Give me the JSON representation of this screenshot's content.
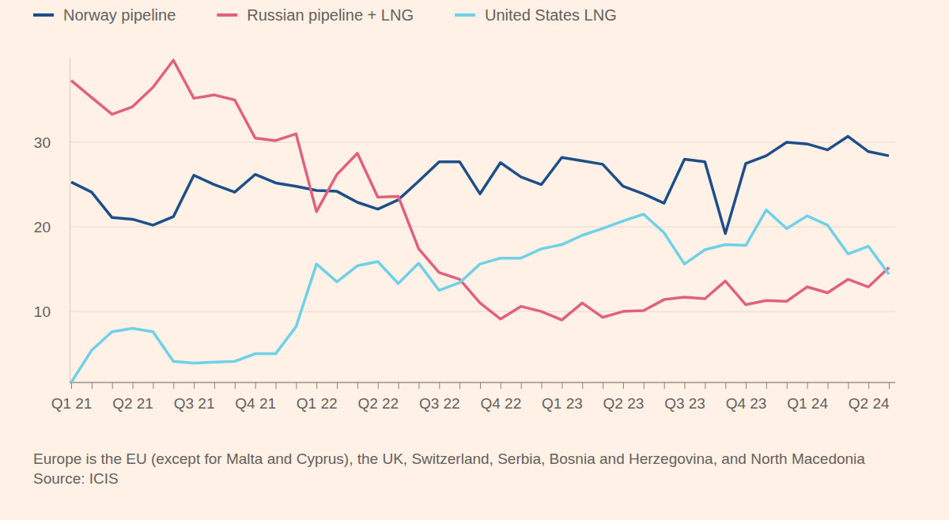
{
  "chart_data": {
    "type": "line",
    "categories": [
      "Q1 21",
      null,
      null,
      "Q2 21",
      null,
      null,
      "Q3 21",
      null,
      null,
      "Q4 21",
      null,
      null,
      "Q1 22",
      null,
      null,
      "Q2 22",
      null,
      null,
      "Q3 22",
      null,
      null,
      "Q4 22",
      null,
      null,
      "Q1 23",
      null,
      null,
      "Q2 23",
      null,
      null,
      "Q3 23",
      null,
      null,
      "Q4 23",
      null,
      null,
      "Q1 24",
      null,
      null,
      "Q2 24",
      null
    ],
    "series": [
      {
        "name": "Norway pipeline",
        "color": "#1d4e89",
        "values": [
          25.3,
          24.1,
          21.1,
          20.9,
          20.2,
          21.2,
          26.1,
          25.0,
          24.1,
          26.2,
          25.2,
          24.8,
          24.3,
          24.2,
          22.9,
          22.1,
          23.2,
          25.4,
          27.7,
          27.7,
          23.9,
          27.6,
          25.9,
          25.0,
          28.2,
          27.8,
          27.4,
          24.8,
          23.9,
          22.8,
          28.0,
          27.7,
          19.2,
          27.5,
          28.4,
          30.0,
          29.8,
          29.1,
          30.7,
          28.9,
          28.4
        ]
      },
      {
        "name": "Russian pipeline + LNG",
        "color": "#e0607e",
        "values": [
          37.3,
          35.3,
          33.3,
          34.2,
          36.5,
          39.7,
          35.2,
          35.6,
          35.0,
          30.5,
          30.2,
          31.0,
          21.8,
          26.2,
          28.7,
          23.5,
          23.6,
          17.4,
          14.6,
          13.8,
          11.0,
          9.1,
          10.6,
          10.0,
          9.0,
          11.0,
          9.3,
          10.0,
          10.1,
          11.4,
          11.7,
          11.5,
          13.6,
          10.8,
          11.3,
          11.2,
          12.9,
          12.2,
          13.8,
          12.9,
          15.2
        ]
      },
      {
        "name": "United States LNG",
        "color": "#6fd0e8",
        "values": [
          1.6,
          5.4,
          7.6,
          8.0,
          7.6,
          4.1,
          3.9,
          4.0,
          4.1,
          5.0,
          5.0,
          8.2,
          15.6,
          13.5,
          15.4,
          15.9,
          13.3,
          15.7,
          12.5,
          13.4,
          15.6,
          16.3,
          16.3,
          17.4,
          17.9,
          19.0,
          19.8,
          20.7,
          21.5,
          19.3,
          15.6,
          17.3,
          17.9,
          17.8,
          22.0,
          19.8,
          21.3,
          20.2,
          16.8,
          17.7,
          14.4
        ]
      }
    ],
    "ylim": [
      1.6,
      40
    ],
    "yticks": [
      10,
      20,
      30
    ],
    "grid": true,
    "legend": "top",
    "annotations": [
      "Europe is the EU (except for Malta and Cyprus), the UK, Switzerland, Serbia, Bosnia and Herzegovina, and North Macedonia",
      "Source: ICIS"
    ]
  }
}
